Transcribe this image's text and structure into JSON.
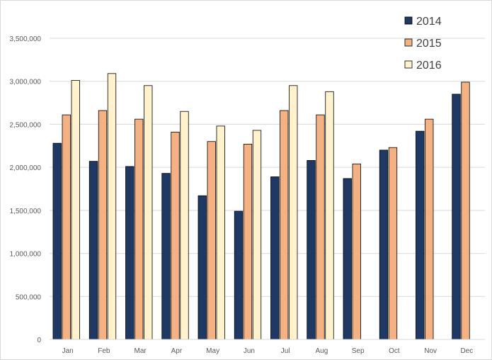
{
  "chart_data": {
    "type": "bar",
    "title": "",
    "xlabel": "",
    "ylabel": "",
    "categories": [
      "Jan",
      "Feb",
      "Mar",
      "Apr",
      "May",
      "Jun",
      "Jul",
      "Aug",
      "Sep",
      "Oct",
      "Nov",
      "Dec"
    ],
    "ylim": [
      0,
      3500000
    ],
    "yticks": [
      {
        "value": 0,
        "label": "0"
      },
      {
        "value": 500000,
        "label": "500,000"
      },
      {
        "value": 1000000,
        "label": "1,000,000"
      },
      {
        "value": 1500000,
        "label": "1,500,000"
      },
      {
        "value": 2000000,
        "label": "2,000,000"
      },
      {
        "value": 2500000,
        "label": "2,500,000"
      },
      {
        "value": 3000000,
        "label": "3,000,000"
      },
      {
        "value": 3500000,
        "label": "3,500,000"
      }
    ],
    "grid": true,
    "legend_position": "top-right",
    "series": [
      {
        "name": "2014",
        "color": "#203864",
        "stroke": "#000000",
        "values": [
          2280000,
          2070000,
          2010000,
          1930000,
          1670000,
          1490000,
          1890000,
          2080000,
          1870000,
          2200000,
          2420000,
          2850000
        ]
      },
      {
        "name": "2015",
        "color": "#F4B183",
        "stroke": "#000000",
        "values": [
          2610000,
          2660000,
          2560000,
          2410000,
          2300000,
          2270000,
          2660000,
          2610000,
          2040000,
          2230000,
          2560000,
          2990000
        ]
      },
      {
        "name": "2016",
        "color": "#FFF2CC",
        "stroke": "#000000",
        "values": [
          3010000,
          3090000,
          2950000,
          2650000,
          2480000,
          2430000,
          2950000,
          2880000,
          null,
          null,
          null,
          null
        ]
      }
    ]
  }
}
